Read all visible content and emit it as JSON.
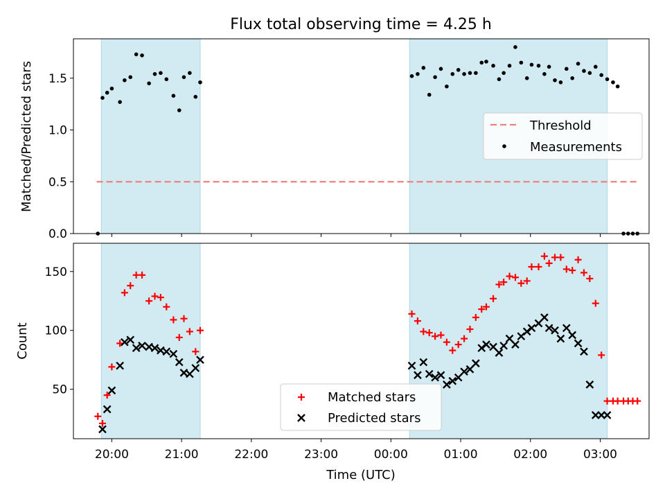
{
  "figure": {
    "title": "Flux total observing time = 4.25 h"
  },
  "colors": {
    "shade": "#add8e6",
    "threshold": "#f08080",
    "measurements": "#000000",
    "matched": "#ff0000",
    "predicted": "#000000"
  },
  "chart_data": [
    {
      "type": "scatter",
      "title": "Flux total observing time = 4.25 h",
      "xlabel": "",
      "ylabel": "Matched/Predicted stars",
      "ylim": [
        0,
        1.88
      ],
      "yticks": [
        0.0,
        0.5,
        1.0,
        1.5
      ],
      "ytick_labels": [
        "0.0",
        "0.5",
        "1.0",
        "1.5"
      ],
      "xlim": [
        "19:27",
        "03:42"
      ],
      "xticks": [
        "20:00",
        "21:00",
        "22:00",
        "23:00",
        "00:00",
        "01:00",
        "02:00",
        "03:00"
      ],
      "shaded_intervals": [
        [
          "19:51",
          "21:16"
        ],
        [
          "00:16",
          "03:06"
        ]
      ],
      "threshold": {
        "name": "Threshold",
        "value": 0.5,
        "x_range": [
          "19:47",
          "03:32"
        ]
      },
      "legend": {
        "position": "center-right",
        "entries": [
          "Threshold",
          "Measurements"
        ]
      },
      "series": [
        {
          "name": "Measurements",
          "marker": "dot",
          "x": [
            "19:48",
            "19:52",
            "19:56",
            "20:00",
            "20:07",
            "20:11",
            "20:16",
            "20:21",
            "20:26",
            "20:32",
            "20:37",
            "20:42",
            "20:47",
            "20:53",
            "20:58",
            "21:02",
            "21:07",
            "21:12",
            "21:16",
            "00:18",
            "00:23",
            "00:28",
            "00:33",
            "00:38",
            "00:43",
            "00:48",
            "00:53",
            "00:58",
            "01:03",
            "01:08",
            "01:13",
            "01:18",
            "01:22",
            "01:28",
            "01:33",
            "01:37",
            "01:42",
            "01:47",
            "01:52",
            "01:57",
            "02:01",
            "02:07",
            "02:12",
            "02:16",
            "02:21",
            "02:26",
            "02:31",
            "02:36",
            "02:41",
            "02:46",
            "02:51",
            "02:56",
            "03:01",
            "03:06",
            "03:11",
            "03:15",
            "03:20",
            "03:24",
            "03:28",
            "03:32"
          ],
          "y": [
            0.0,
            1.31,
            1.36,
            1.4,
            1.27,
            1.48,
            1.51,
            1.73,
            1.72,
            1.45,
            1.54,
            1.55,
            1.49,
            1.33,
            1.19,
            1.51,
            1.55,
            1.32,
            1.46,
            1.52,
            1.54,
            1.6,
            1.34,
            1.51,
            1.59,
            1.42,
            1.54,
            1.58,
            1.54,
            1.55,
            1.55,
            1.65,
            1.66,
            1.62,
            1.49,
            1.55,
            1.62,
            1.8,
            1.65,
            1.5,
            1.63,
            1.62,
            1.54,
            1.61,
            1.48,
            1.46,
            1.59,
            1.5,
            1.64,
            1.57,
            1.55,
            1.61,
            1.53,
            1.49,
            1.46,
            1.42,
            0.0,
            0.0,
            0.0,
            0.0
          ]
        }
      ]
    },
    {
      "type": "scatter",
      "title": "",
      "xlabel": "Time (UTC)",
      "ylabel": "Count",
      "ylim": [
        8,
        174
      ],
      "yticks": [
        50,
        100,
        150
      ],
      "ytick_labels": [
        "50",
        "100",
        "150"
      ],
      "xlim": [
        "19:27",
        "03:42"
      ],
      "xticks": [
        "20:00",
        "21:00",
        "22:00",
        "23:00",
        "00:00",
        "01:00",
        "02:00",
        "03:00"
      ],
      "xtick_labels": [
        "20:00",
        "21:00",
        "22:00",
        "23:00",
        "00:00",
        "01:00",
        "02:00",
        "03:00"
      ],
      "shaded_intervals": [
        [
          "19:51",
          "21:16"
        ],
        [
          "00:16",
          "03:06"
        ]
      ],
      "legend": {
        "position": "bottom-center",
        "entries": [
          "Matched stars",
          "Predicted stars"
        ]
      },
      "series": [
        {
          "name": "Matched stars",
          "marker": "plus",
          "x": [
            "19:48",
            "19:52",
            "19:56",
            "20:00",
            "20:07",
            "20:11",
            "20:16",
            "20:21",
            "20:26",
            "20:32",
            "20:37",
            "20:42",
            "20:47",
            "20:53",
            "20:58",
            "21:02",
            "21:07",
            "21:12",
            "21:16",
            "00:18",
            "00:23",
            "00:28",
            "00:33",
            "00:38",
            "00:43",
            "00:48",
            "00:53",
            "00:58",
            "01:03",
            "01:08",
            "01:13",
            "01:18",
            "01:22",
            "01:28",
            "01:33",
            "01:37",
            "01:42",
            "01:47",
            "01:52",
            "01:57",
            "02:01",
            "02:07",
            "02:12",
            "02:16",
            "02:21",
            "02:26",
            "02:31",
            "02:36",
            "02:41",
            "02:46",
            "02:51",
            "02:56",
            "03:01",
            "03:06",
            "03:11",
            "03:15",
            "03:20",
            "03:24",
            "03:28",
            "03:32"
          ],
          "y": [
            27,
            21,
            45,
            69,
            89,
            132,
            138,
            147,
            147,
            125,
            129,
            128,
            120,
            109,
            94,
            110,
            99,
            82,
            100,
            114,
            108,
            99,
            98,
            95,
            96,
            90,
            83,
            88,
            93,
            101,
            111,
            118,
            120,
            127,
            139,
            141,
            146,
            145,
            140,
            142,
            154,
            154,
            163,
            157,
            162,
            162,
            152,
            151,
            160,
            149,
            144,
            123,
            79,
            40,
            40,
            40,
            40,
            40,
            40,
            40
          ]
        },
        {
          "name": "Predicted stars",
          "marker": "x",
          "x": [
            "19:52",
            "19:56",
            "20:00",
            "20:07",
            "20:11",
            "20:16",
            "20:21",
            "20:26",
            "20:32",
            "20:37",
            "20:42",
            "20:47",
            "20:53",
            "20:58",
            "21:02",
            "21:07",
            "21:12",
            "21:16",
            "00:18",
            "00:23",
            "00:28",
            "00:33",
            "00:38",
            "00:43",
            "00:48",
            "00:53",
            "00:58",
            "01:03",
            "01:08",
            "01:13",
            "01:18",
            "01:22",
            "01:28",
            "01:33",
            "01:37",
            "01:42",
            "01:47",
            "01:52",
            "01:57",
            "02:01",
            "02:07",
            "02:12",
            "02:16",
            "02:21",
            "02:26",
            "02:31",
            "02:36",
            "02:41",
            "02:46",
            "02:51",
            "02:56",
            "03:01",
            "03:06"
          ],
          "y": [
            16,
            33,
            49,
            70,
            90,
            92,
            85,
            87,
            86,
            85,
            83,
            82,
            80,
            73,
            64,
            63,
            68,
            75,
            70,
            62,
            73,
            63,
            60,
            62,
            54,
            57,
            60,
            65,
            67,
            72,
            85,
            88,
            86,
            81,
            87,
            93,
            88,
            95,
            99,
            102,
            106,
            111,
            102,
            100,
            93,
            102,
            96,
            89,
            82,
            54,
            28,
            28,
            28
          ]
        }
      ]
    }
  ]
}
